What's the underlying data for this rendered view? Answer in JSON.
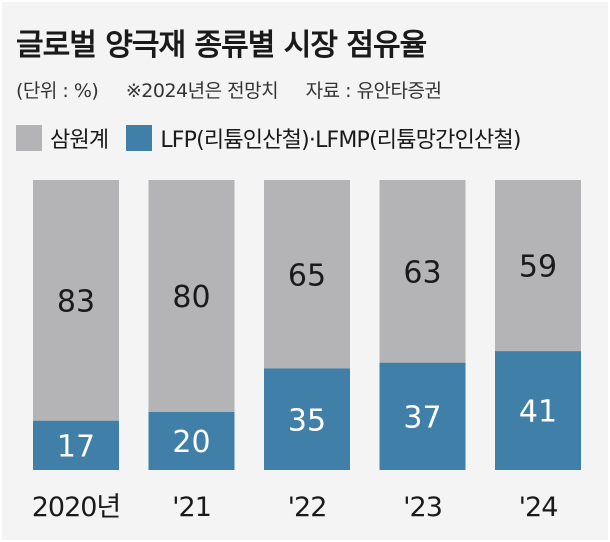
{
  "title": "글로벌 양극재 종류별 시장 점유율",
  "meta": {
    "unit": "(단위 : %)",
    "note": "※2024년은 전망치",
    "source": "자료 : 유안타증권"
  },
  "legend": {
    "separator": "·"
  },
  "colors": {
    "ncm": "#b4b4b6",
    "lfp": "#3f7fa8",
    "background": "#f4f4f4"
  },
  "chart_data": {
    "type": "bar",
    "stacked": true,
    "categories": [
      "2020년",
      "'21",
      "'22",
      "'23",
      "'24"
    ],
    "series": [
      {
        "name": "LFP(리튬인산철)·LFMP(리튬망간인산철)",
        "values": [
          17,
          20,
          35,
          37,
          41
        ]
      },
      {
        "name": "삼원계",
        "values": [
          83,
          80,
          65,
          63,
          59
        ]
      }
    ],
    "ylim": [
      0,
      100
    ],
    "grid": false,
    "legend_position": "top-left"
  }
}
